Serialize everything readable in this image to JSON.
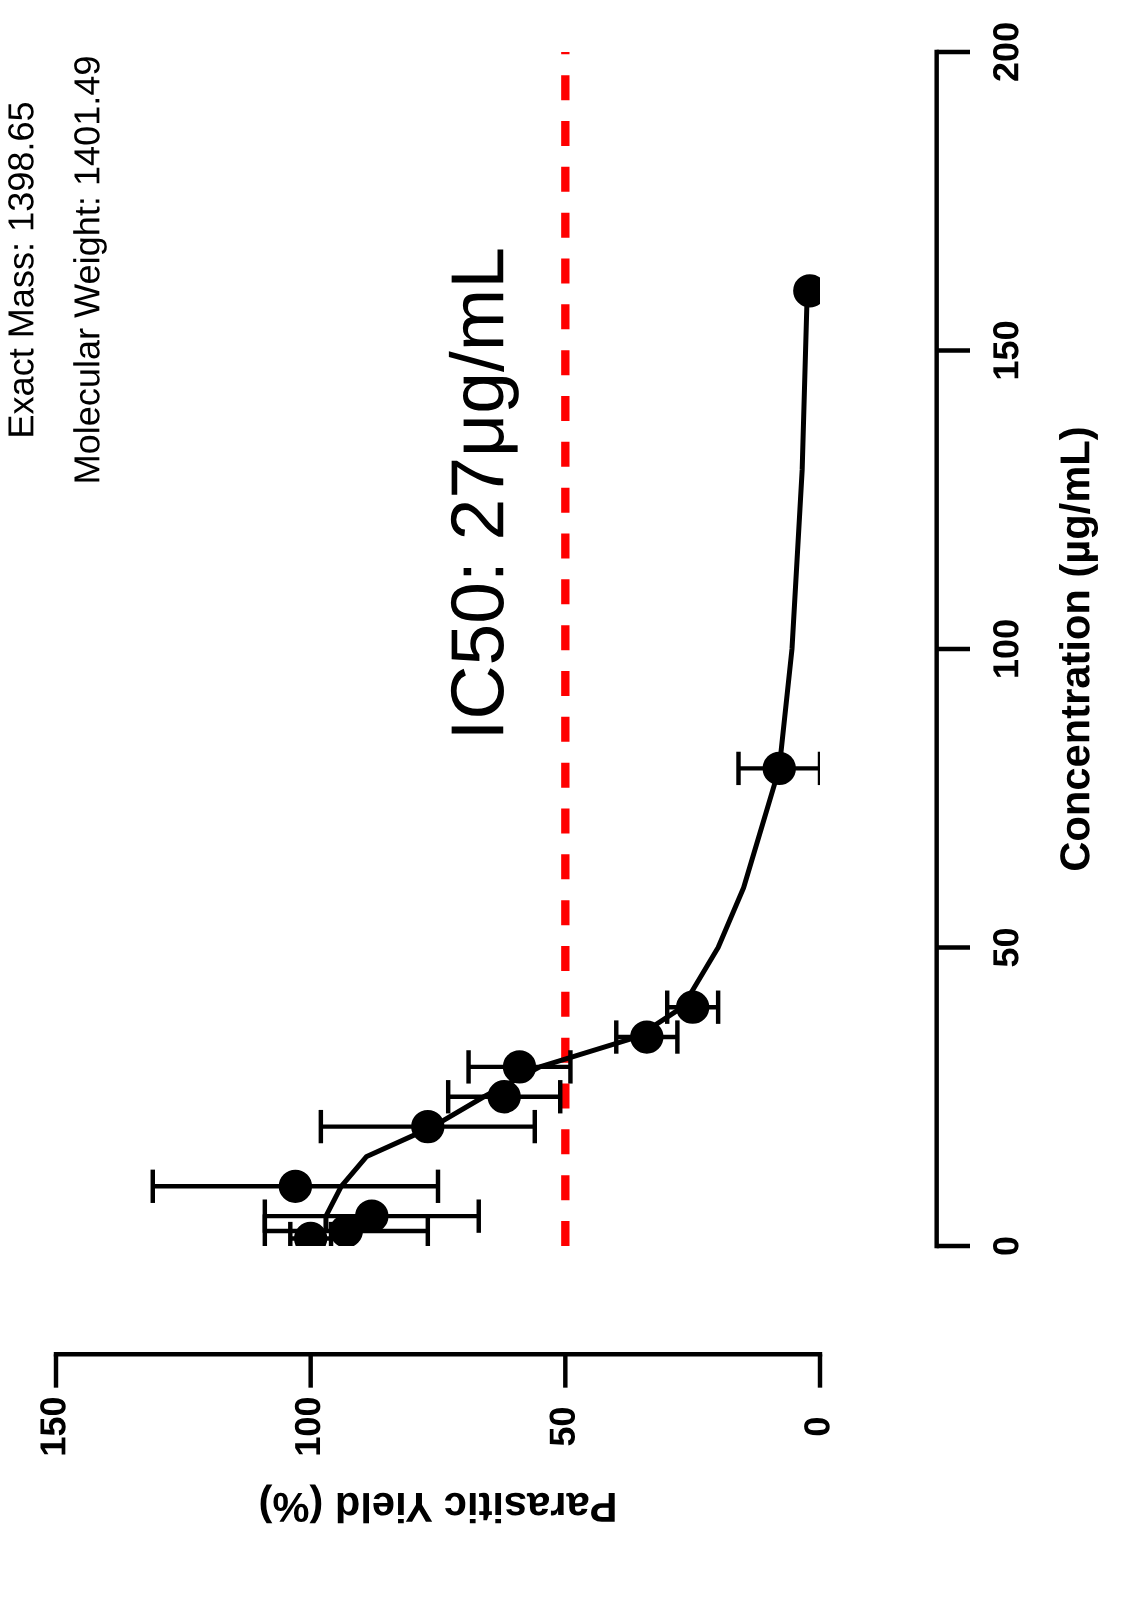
{
  "chart_data": {
    "type": "scatter",
    "xlabel": "Parasitic Yield (%)",
    "ylabel": "Concentration (µg/mL)",
    "xlim": [
      150,
      0
    ],
    "xticks": [
      150,
      100,
      50,
      0
    ],
    "ylim": [
      0,
      200
    ],
    "yticks": [
      0,
      50,
      100,
      150,
      200
    ],
    "series": [
      {
        "color": "#000000",
        "marker": "circle",
        "x": [
          100,
          93,
          88,
          103,
          77,
          62,
          59,
          34,
          25,
          8,
          2
        ],
        "values": [
          1.25,
          2.5,
          5,
          10,
          20,
          25,
          30,
          35,
          40,
          80,
          160
        ],
        "xerrors": [
          4,
          16,
          21,
          28,
          21,
          11,
          10,
          6,
          5,
          8,
          null
        ]
      },
      {
        "type": "line",
        "color": "#000000",
        "marker": "none",
        "line_style": "solid",
        "x": [
          97,
          97,
          94,
          89,
          76,
          66,
          55,
          36,
          27,
          20,
          15,
          8,
          5.5,
          3.5,
          2.5
        ],
        "values": [
          3,
          5,
          10,
          15,
          20,
          25,
          30,
          35,
          40,
          50,
          60,
          80,
          100,
          130,
          160
        ]
      }
    ],
    "ref_lines": [
      {
        "axis": "x",
        "value": 50,
        "color": "#ff0000",
        "line_style": "dashed"
      }
    ],
    "annotations": [
      "IC50: 27μg/mL",
      "Exact Mass: 1398.65",
      "Molecular Weight: 1401.49"
    ]
  }
}
